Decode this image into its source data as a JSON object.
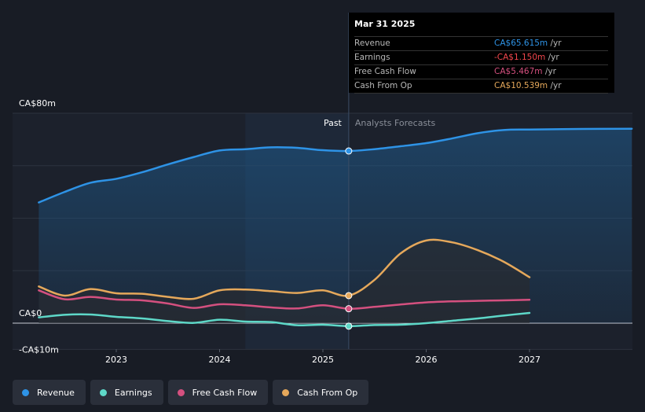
{
  "tooltip": {
    "date": "Mar 31 2025",
    "rows": [
      {
        "label": "Revenue",
        "value": "CA$65.615m",
        "unit": " /yr",
        "color": "#2e93e6"
      },
      {
        "label": "Earnings",
        "value": "-CA$1.150m",
        "unit": " /yr",
        "color": "#f2464c"
      },
      {
        "label": "Free Cash Flow",
        "value": "CA$5.467m",
        "unit": " /yr",
        "color": "#d4507f"
      },
      {
        "label": "Cash From Op",
        "value": "CA$10.539m",
        "unit": " /yr",
        "color": "#e5a85b"
      }
    ]
  },
  "legend": [
    {
      "label": "Revenue",
      "color": "#2e93e6"
    },
    {
      "label": "Earnings",
      "color": "#5ed8c8"
    },
    {
      "label": "Free Cash Flow",
      "color": "#d4507f"
    },
    {
      "label": "Cash From Op",
      "color": "#e5a85b"
    }
  ],
  "chart_data": {
    "type": "line",
    "title": "",
    "xlabel": "",
    "ylabel": "",
    "x_ticks": [
      2023,
      2024,
      2025,
      2026,
      2027
    ],
    "x_range": [
      2022.25,
      2027.99
    ],
    "ylim": [
      -10,
      80
    ],
    "y_tick_labels": [
      {
        "value": 80,
        "label": "CA$80m"
      },
      {
        "value": 0,
        "label": "CA$0"
      },
      {
        "value": -10,
        "label": "-CA$10m"
      }
    ],
    "divider_x": 2025.25,
    "past_label": "Past",
    "forecast_label": "Analysts Forecasts",
    "series": [
      {
        "name": "Revenue",
        "color": "#2e93e6",
        "fill": true,
        "x": [
          2022.25,
          2022.5,
          2022.75,
          2023.0,
          2023.25,
          2023.5,
          2023.75,
          2024.0,
          2024.25,
          2024.5,
          2024.75,
          2025.0,
          2025.25,
          2025.5,
          2025.75,
          2026.0,
          2026.25,
          2026.5,
          2026.75,
          2027.0,
          2027.5,
          2027.99
        ],
        "y": [
          46,
          50,
          53.5,
          55,
          57.5,
          60.5,
          63.3,
          65.8,
          66.3,
          67,
          66.8,
          65.9,
          65.6,
          66.3,
          67.4,
          68.6,
          70.4,
          72.4,
          73.6,
          73.8,
          74,
          74.1
        ]
      },
      {
        "name": "Cash From Op",
        "color": "#e5a85b",
        "fill": false,
        "x": [
          2022.25,
          2022.5,
          2022.75,
          2023.0,
          2023.25,
          2023.5,
          2023.75,
          2024.0,
          2024.25,
          2024.5,
          2024.75,
          2025.0,
          2025.25,
          2025.5,
          2025.75,
          2026.0,
          2026.25,
          2026.5,
          2026.75,
          2027.0
        ],
        "y": [
          14,
          10.5,
          13,
          11.4,
          11.2,
          10,
          9.3,
          12.5,
          12.8,
          12.2,
          11.5,
          12.5,
          10.5,
          16.5,
          26.5,
          31.5,
          30.8,
          27.8,
          23.4,
          17.5
        ]
      },
      {
        "name": "Free Cash Flow",
        "color": "#d4507f",
        "fill": false,
        "x": [
          2022.25,
          2022.5,
          2022.75,
          2023.0,
          2023.25,
          2023.5,
          2023.75,
          2024.0,
          2024.25,
          2024.5,
          2024.75,
          2025.0,
          2025.25,
          2025.5,
          2025.75,
          2026.0,
          2026.25,
          2026.5,
          2026.75,
          2027.0
        ],
        "y": [
          12.5,
          9.1,
          10,
          9,
          8.7,
          7.5,
          5.8,
          7.2,
          6.8,
          6,
          5.6,
          6.8,
          5.5,
          6.2,
          7.1,
          7.9,
          8.3,
          8.5,
          8.7,
          8.9
        ]
      },
      {
        "name": "Earnings",
        "color": "#5ed8c8",
        "fill": false,
        "x": [
          2022.25,
          2022.5,
          2022.75,
          2023.0,
          2023.25,
          2023.5,
          2023.75,
          2024.0,
          2024.25,
          2024.5,
          2024.75,
          2025.0,
          2025.25,
          2025.5,
          2025.75,
          2026.0,
          2026.25,
          2026.5,
          2026.75,
          2027.0
        ],
        "y": [
          2.2,
          3.2,
          3.3,
          2.4,
          1.8,
          0.8,
          0.1,
          1.3,
          0.6,
          0.4,
          -0.8,
          -0.6,
          -1.15,
          -0.7,
          -0.6,
          0,
          0.9,
          1.8,
          2.9,
          3.9
        ]
      }
    ],
    "markers_at_x": 2025.25
  }
}
